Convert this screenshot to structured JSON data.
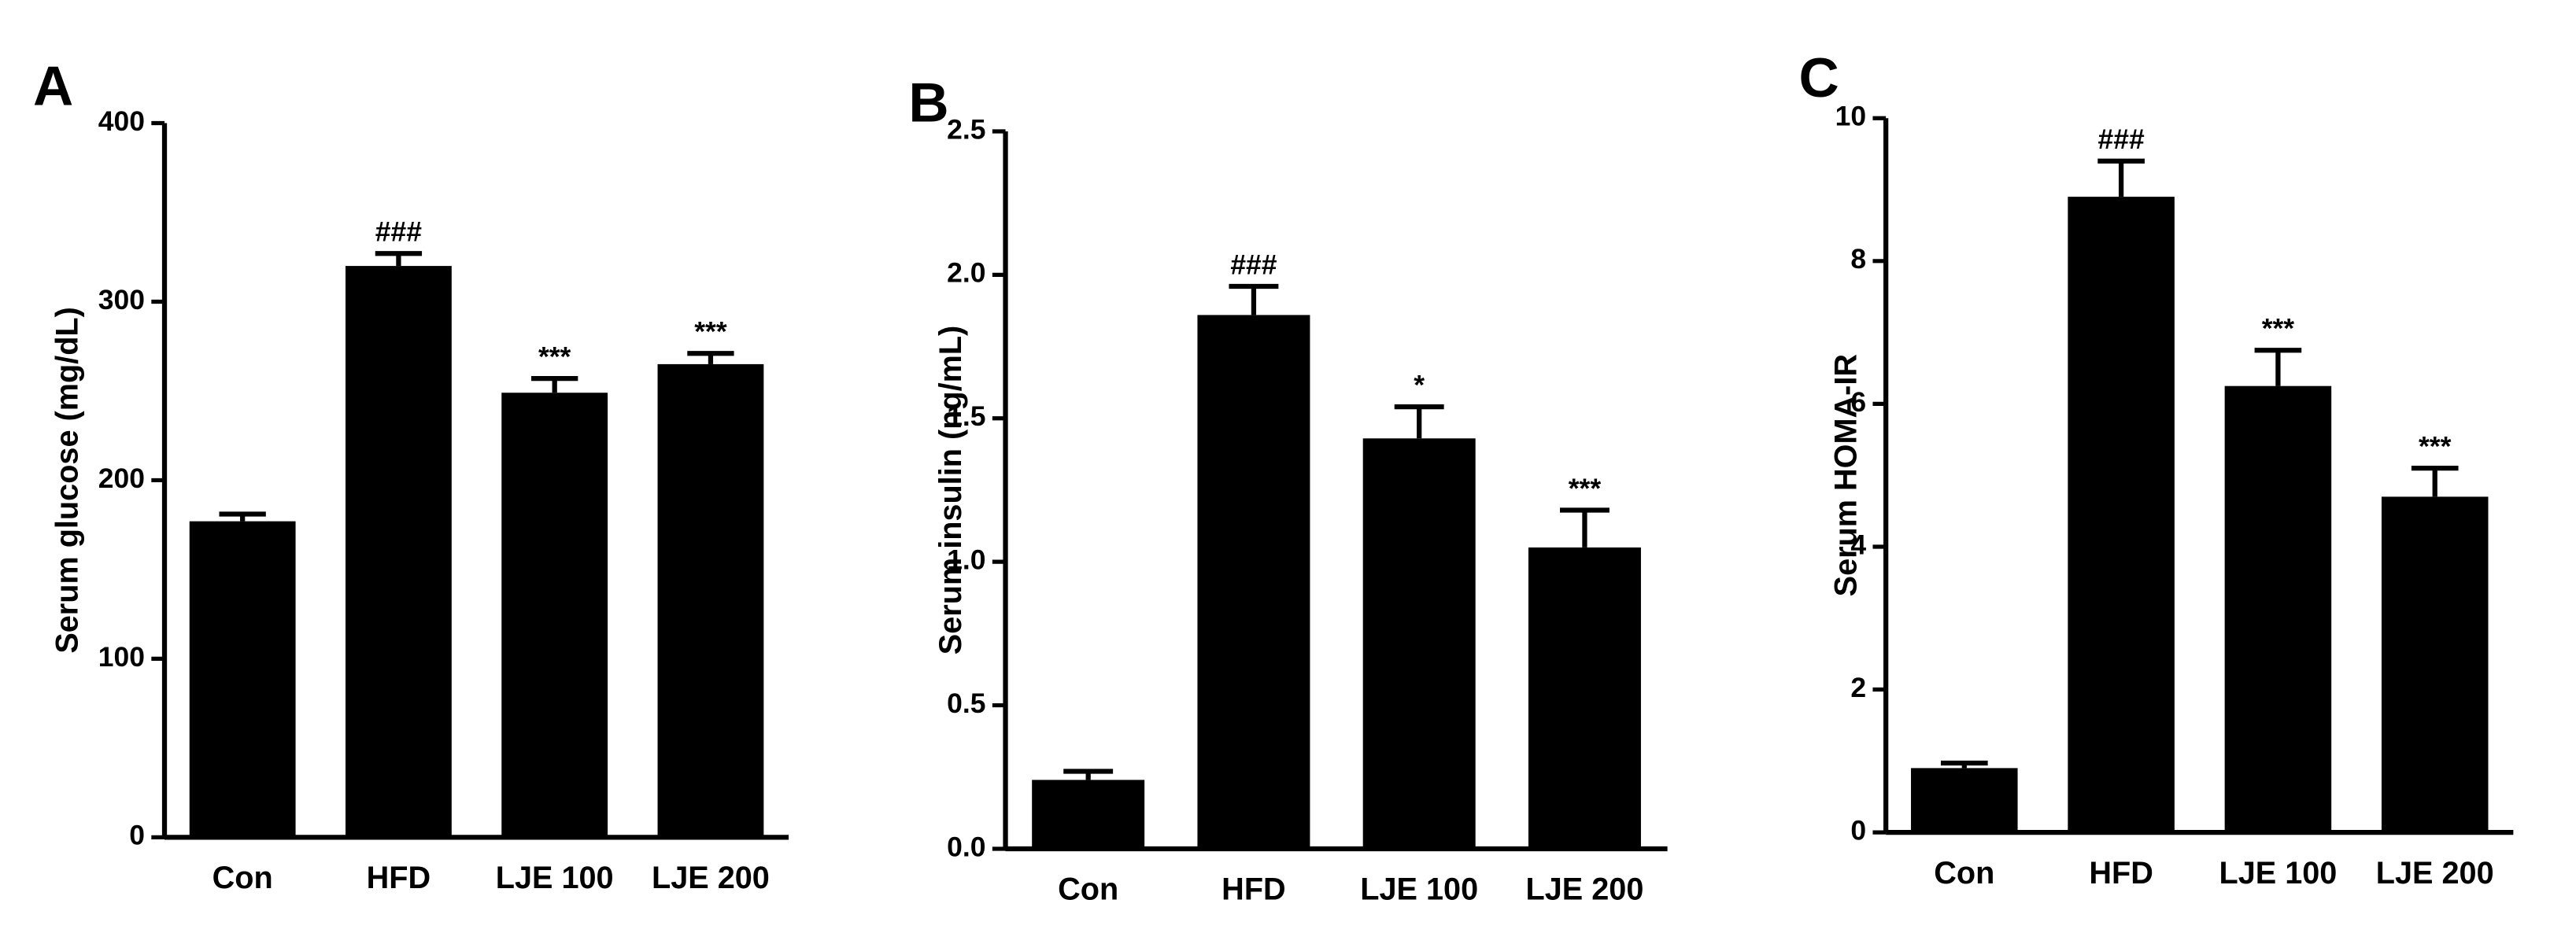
{
  "chart_data": [
    {
      "type": "bar",
      "panel": "A",
      "ylabel": "Serum glucose (mg/dL)",
      "categories": [
        "Con",
        "HFD",
        "LJE 100",
        "LJE 200"
      ],
      "values": [
        177,
        320,
        249,
        265
      ],
      "errors": [
        4,
        7,
        8,
        6
      ],
      "annotations": [
        null,
        "###",
        "***",
        "***"
      ],
      "color": "#000000",
      "ylim": [
        0,
        400
      ],
      "yticks": [
        0,
        100,
        200,
        300,
        400
      ],
      "grid": false
    },
    {
      "type": "bar",
      "panel": "B",
      "ylabel": "Serum insulin (ng/mL)",
      "categories": [
        "Con",
        "HFD",
        "LJE 100",
        "LJE 200"
      ],
      "values": [
        0.24,
        1.86,
        1.43,
        1.05
      ],
      "errors": [
        0.03,
        0.1,
        0.11,
        0.13
      ],
      "annotations": [
        null,
        "###",
        "*",
        "***"
      ],
      "color": "#000000",
      "ylim": [
        0,
        2.5
      ],
      "yticks": [
        {
          "value": 0,
          "label": "0.0"
        },
        0.5,
        {
          "value": 1,
          "label": "1.0"
        },
        1.5,
        {
          "value": 2,
          "label": "2.0"
        },
        2.5
      ],
      "grid": false
    },
    {
      "type": "bar",
      "panel": "C",
      "ylabel": "Serum HOMA-IR",
      "categories": [
        "Con",
        "HFD",
        "LJE 100",
        "LJE 200"
      ],
      "values": [
        0.9,
        8.9,
        6.25,
        4.7
      ],
      "errors": [
        0.07,
        0.5,
        0.5,
        0.4
      ],
      "annotations": [
        null,
        "###",
        "***",
        "***"
      ],
      "color": "#000000",
      "ylim": [
        0,
        10
      ],
      "yticks": [
        0,
        2,
        4,
        6,
        8,
        10
      ],
      "grid": false
    }
  ]
}
